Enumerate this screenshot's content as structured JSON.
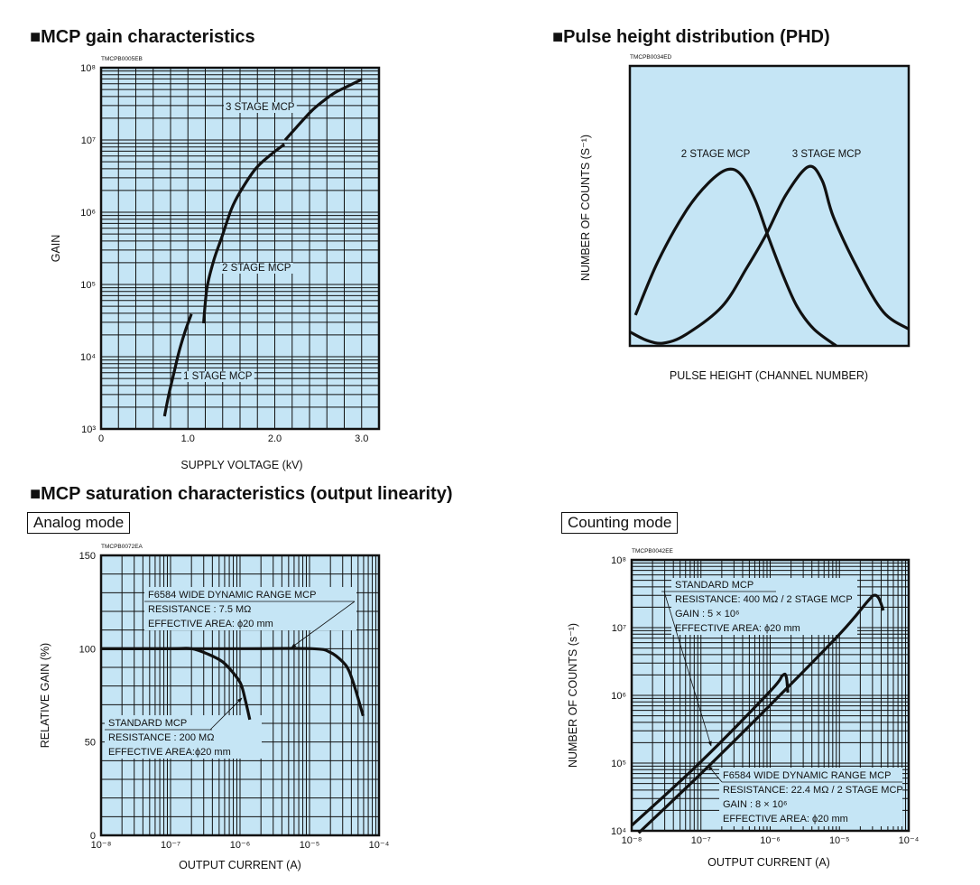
{
  "sections": {
    "gain_title": "■MCP gain characteristics",
    "phd_title": "■Pulse height distribution (PHD)",
    "saturation_title": "■MCP saturation characteristics (output linearity)",
    "analog_mode": "Analog mode",
    "counting_mode": "Counting mode"
  },
  "colors": {
    "plot_background": "#c5e5f5",
    "ink": "#111111"
  },
  "chart_data": [
    {
      "id": "gain",
      "type": "line",
      "code": "TMCPB0005EB",
      "xlabel": "SUPPLY VOLTAGE (kV)",
      "ylabel": "GAIN",
      "xscale": "linear",
      "yscale": "log",
      "xlim": [
        0,
        3.2
      ],
      "ylim": [
        1000,
        100000000
      ],
      "xticks": [
        0,
        1,
        2,
        3
      ],
      "xtick_labels": [
        "0",
        "1.0",
        "2.0",
        "3.0"
      ],
      "yticks": [
        1000,
        10000,
        100000,
        1000000,
        10000000,
        100000000
      ],
      "ytick_labels": [
        "10³",
        "10⁴",
        "10⁵",
        "10⁶",
        "10⁷",
        "10⁸"
      ],
      "grid": true,
      "series": [
        {
          "name": "1 STAGE MCP",
          "points": [
            [
              0.73,
              1500
            ],
            [
              0.78,
              3000
            ],
            [
              0.84,
              6000
            ],
            [
              0.9,
              12000
            ],
            [
              0.97,
              23000
            ],
            [
              1.04,
              39000
            ]
          ]
        },
        {
          "name": "2 STAGE MCP",
          "points": [
            [
              1.18,
              29000
            ],
            [
              1.22,
              90000
            ],
            [
              1.3,
              220000
            ],
            [
              1.39,
              450000
            ],
            [
              1.5,
              1100000
            ],
            [
              1.6,
              1900000
            ],
            [
              1.78,
              4000000
            ],
            [
              1.95,
              6200000
            ],
            [
              2.11,
              8700000
            ]
          ]
        },
        {
          "name": "3 STAGE MCP",
          "points": [
            [
              2.12,
              10000000
            ],
            [
              2.25,
              15000000
            ],
            [
              2.42,
              25000000
            ],
            [
              2.55,
              34000000
            ],
            [
              2.69,
              45000000
            ],
            [
              2.85,
              56000000
            ],
            [
              3.0,
              69000000
            ]
          ]
        }
      ]
    },
    {
      "id": "phd",
      "type": "line",
      "code": "TMCPB0034ED",
      "xlabel": "PULSE HEIGHT (CHANNEL NUMBER)",
      "ylabel": "NUMBER OF COUNTS (S⁻¹)",
      "xlim": [
        0,
        100
      ],
      "ylim": [
        0,
        100
      ],
      "grid": false,
      "series": [
        {
          "name": "2 STAGE MCP",
          "points": [
            [
              2,
              11
            ],
            [
              10,
              30
            ],
            [
              20,
              48
            ],
            [
              28,
              58
            ],
            [
              35,
              63
            ],
            [
              40,
              61
            ],
            [
              45,
              52
            ],
            [
              50,
              38
            ],
            [
              55,
              25
            ],
            [
              60,
              14
            ],
            [
              66,
              6
            ],
            [
              74,
              0
            ]
          ]
        },
        {
          "name": "3 STAGE MCP",
          "points": [
            [
              0,
              5
            ],
            [
              6,
              2
            ],
            [
              12,
              1
            ],
            [
              20,
              4
            ],
            [
              33,
              14
            ],
            [
              42,
              28
            ],
            [
              49,
              40
            ],
            [
              56,
              54
            ],
            [
              64,
              64
            ],
            [
              69,
              59
            ],
            [
              73,
              46
            ],
            [
              82,
              27
            ],
            [
              91,
              12
            ],
            [
              100,
              6
            ]
          ]
        }
      ]
    },
    {
      "id": "analog",
      "type": "line",
      "code": "TMCPB0072EA",
      "xlabel": "OUTPUT CURRENT (A)",
      "ylabel": "RELATIVE GAIN (%)",
      "xscale": "log",
      "yscale": "linear",
      "xlim": [
        1e-08,
        0.0001
      ],
      "ylim": [
        0,
        150
      ],
      "xticks": [
        1e-08,
        1e-07,
        1e-06,
        1e-05,
        0.0001
      ],
      "xtick_labels": [
        "10⁻⁸",
        "10⁻⁷",
        "10⁻⁶",
        "10⁻⁵",
        "10⁻⁴"
      ],
      "yticks": [
        0,
        50,
        100,
        150
      ],
      "ytick_labels": [
        "0",
        "50",
        "100",
        "150"
      ],
      "grid": true,
      "series": [
        {
          "name": "STANDARD MCP",
          "points": [
            [
              1e-08,
              100
            ],
            [
              1e-07,
              100
            ],
            [
              2e-07,
              100
            ],
            [
              3.5e-07,
              97
            ],
            [
              5.6e-07,
              93
            ],
            [
              8e-07,
              87
            ],
            [
              1.03e-06,
              81
            ],
            [
              1.2e-06,
              72
            ],
            [
              1.38e-06,
              62
            ]
          ]
        },
        {
          "name": "F6584 WIDE DYNAMIC RANGE MCP",
          "points": [
            [
              1e-08,
              100
            ],
            [
              1e-06,
              100
            ],
            [
              1.1e-05,
              100
            ],
            [
              2e-05,
              98
            ],
            [
              3e-05,
              93
            ],
            [
              3.7e-05,
              88
            ],
            [
              4.6e-05,
              78
            ],
            [
              5.9e-05,
              64
            ]
          ]
        }
      ],
      "annotations": [
        {
          "lines": [
            "F6584 WIDE DYNAMIC RANGE MCP",
            "RESISTANCE : 7.5 MΩ",
            "EFFECTIVE AREA: ϕ20 mm"
          ]
        },
        {
          "lines": [
            "STANDARD MCP",
            "RESISTANCE : 200 MΩ",
            "EFFECTIVE AREA:ϕ20 mm"
          ]
        }
      ]
    },
    {
      "id": "counting",
      "type": "line",
      "code": "TMCPB0042EE",
      "xlabel": "OUTPUT CURRENT (A)",
      "ylabel": "NUMBER OF COUNTS (s⁻¹)",
      "xscale": "log",
      "yscale": "log",
      "xlim": [
        1e-08,
        0.0001
      ],
      "ylim": [
        10000,
        100000000
      ],
      "xticks": [
        1e-08,
        1e-07,
        1e-06,
        1e-05,
        0.0001
      ],
      "xtick_labels": [
        "10⁻⁸",
        "10⁻⁷",
        "10⁻⁶",
        "10⁻⁵",
        "10⁻⁴"
      ],
      "yticks": [
        10000,
        100000,
        1000000,
        10000000,
        100000000
      ],
      "ytick_labels": [
        "10⁴",
        "10⁵",
        "10⁶",
        "10⁷",
        "10⁸"
      ],
      "grid": true,
      "series": [
        {
          "name": "STANDARD MCP",
          "points": [
            [
              1e-08,
              12000
            ],
            [
              1e-07,
              105000
            ],
            [
              1e-06,
              1150000
            ],
            [
              1.5e-06,
              1950000
            ],
            [
              1.7e-06,
              1900000
            ],
            [
              1.8e-06,
              1100000
            ]
          ]
        },
        {
          "name": "F6584 WIDE DYNAMIC RANGE MCP",
          "points": [
            [
              1.26e-08,
              9300
            ],
            [
              1e-07,
              70000
            ],
            [
              1e-06,
              720000
            ],
            [
              1e-05,
              8000000
            ],
            [
              2.6e-05,
              25000000
            ],
            [
              3.2e-05,
              30000000
            ],
            [
              3.7e-05,
              27000000
            ],
            [
              4.3e-05,
              18000000
            ]
          ]
        }
      ],
      "annotations": [
        {
          "lines": [
            "STANDARD MCP",
            "RESISTANCE: 400 MΩ / 2 STAGE MCP",
            "GAIN : 5 × 10⁶",
            "EFFECTIVE AREA: ϕ20 mm"
          ]
        },
        {
          "lines": [
            "F6584 WIDE DYNAMIC RANGE MCP",
            "RESISTANCE: 22.4 MΩ / 2 STAGE MCP",
            "GAIN : 8 × 10⁶",
            "EFFECTIVE AREA: ϕ20 mm"
          ]
        }
      ]
    }
  ]
}
